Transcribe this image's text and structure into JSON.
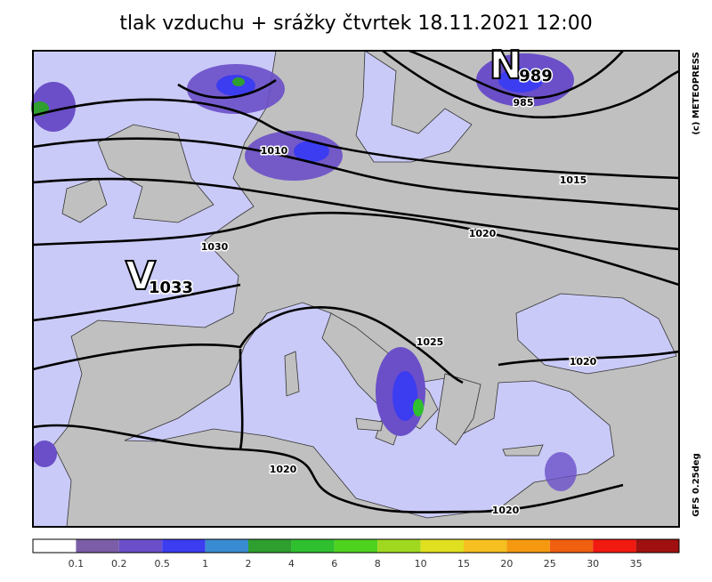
{
  "title": "tlak vzduchu + srážky čtvrtek 18.11.2021 12:00",
  "credit": "(c) METEOPRESS",
  "model": "GFS 0.25deg",
  "centers": [
    {
      "letter": "N",
      "value": "989"
    },
    {
      "letter": "V",
      "value": "1033"
    }
  ],
  "isobar_labels": [
    "985",
    "1010",
    "1015",
    "1020",
    "1030",
    "1025",
    "1020",
    "1020",
    "1020"
  ],
  "legend": {
    "colors": [
      "#ffffff",
      "#7b5ea7",
      "#6a4fc8",
      "#3c3cf0",
      "#3a8cd2",
      "#2f9f2f",
      "#2fbf2f",
      "#4fd21f",
      "#a0d820",
      "#e0e020",
      "#f5c020",
      "#f59a10",
      "#f06010",
      "#f01a10",
      "#a01010"
    ],
    "labels": [
      "0.1",
      "0.2",
      "0.5",
      "1",
      "2",
      "4",
      "6",
      "8",
      "10",
      "15",
      "20",
      "25",
      "30",
      "35"
    ]
  }
}
